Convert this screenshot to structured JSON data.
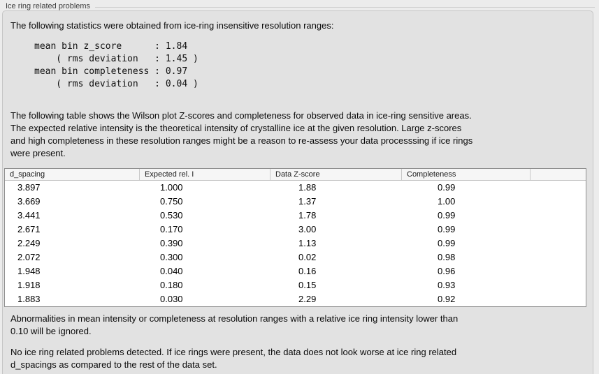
{
  "header": {
    "title": "Ice ring related problems"
  },
  "body": {
    "intro": "The following statistics were obtained from ice-ring insensitive resolution ranges:",
    "stats_block": "mean bin z_score      : 1.84\n    ( rms deviation   : 1.45 )\nmean bin completeness : 0.97\n    ( rms deviation   : 0.04 )",
    "description": "The following table shows the Wilson plot Z-scores and completeness for observed data in ice-ring sensitive areas.\nThe expected relative intensity is the theoretical intensity of crystalline ice at the given resolution. Large z-scores\nand high completeness in these resolution ranges might be a reason to re-assess your data processsing if ice rings\nwere present.",
    "note": "Abnormalities in mean intensity or completeness at resolution ranges with a relative ice ring intensity lower than\n0.10 will be ignored.",
    "conclusion": "No ice ring related problems detected. If ice rings were present, the data does not look worse at ice ring related\nd_spacings as compared to the rest of the data set."
  },
  "table": {
    "headers": [
      "d_spacing",
      "Expected rel. I",
      "Data Z-score",
      "Completeness",
      ""
    ],
    "rows": [
      [
        "3.897",
        "1.000",
        "1.88",
        "0.99"
      ],
      [
        "3.669",
        "0.750",
        "1.37",
        "1.00"
      ],
      [
        "3.441",
        "0.530",
        "1.78",
        "0.99"
      ],
      [
        "2.671",
        "0.170",
        "3.00",
        "0.99"
      ],
      [
        "2.249",
        "0.390",
        "1.13",
        "0.99"
      ],
      [
        "2.072",
        "0.300",
        "0.02",
        "0.98"
      ],
      [
        "1.948",
        "0.040",
        "0.16",
        "0.96"
      ],
      [
        "1.918",
        "0.180",
        "0.15",
        "0.93"
      ],
      [
        "1.883",
        "0.030",
        "2.29",
        "0.92"
      ]
    ]
  },
  "colors": {
    "outer_bg": "#ececec",
    "panel_bg": "#e2e2e2",
    "panel_border": "#c6c6c6",
    "table_border": "#8f8f8f",
    "table_header_bg": "#f6f6f6",
    "header_rule": "#cfcfcf"
  }
}
